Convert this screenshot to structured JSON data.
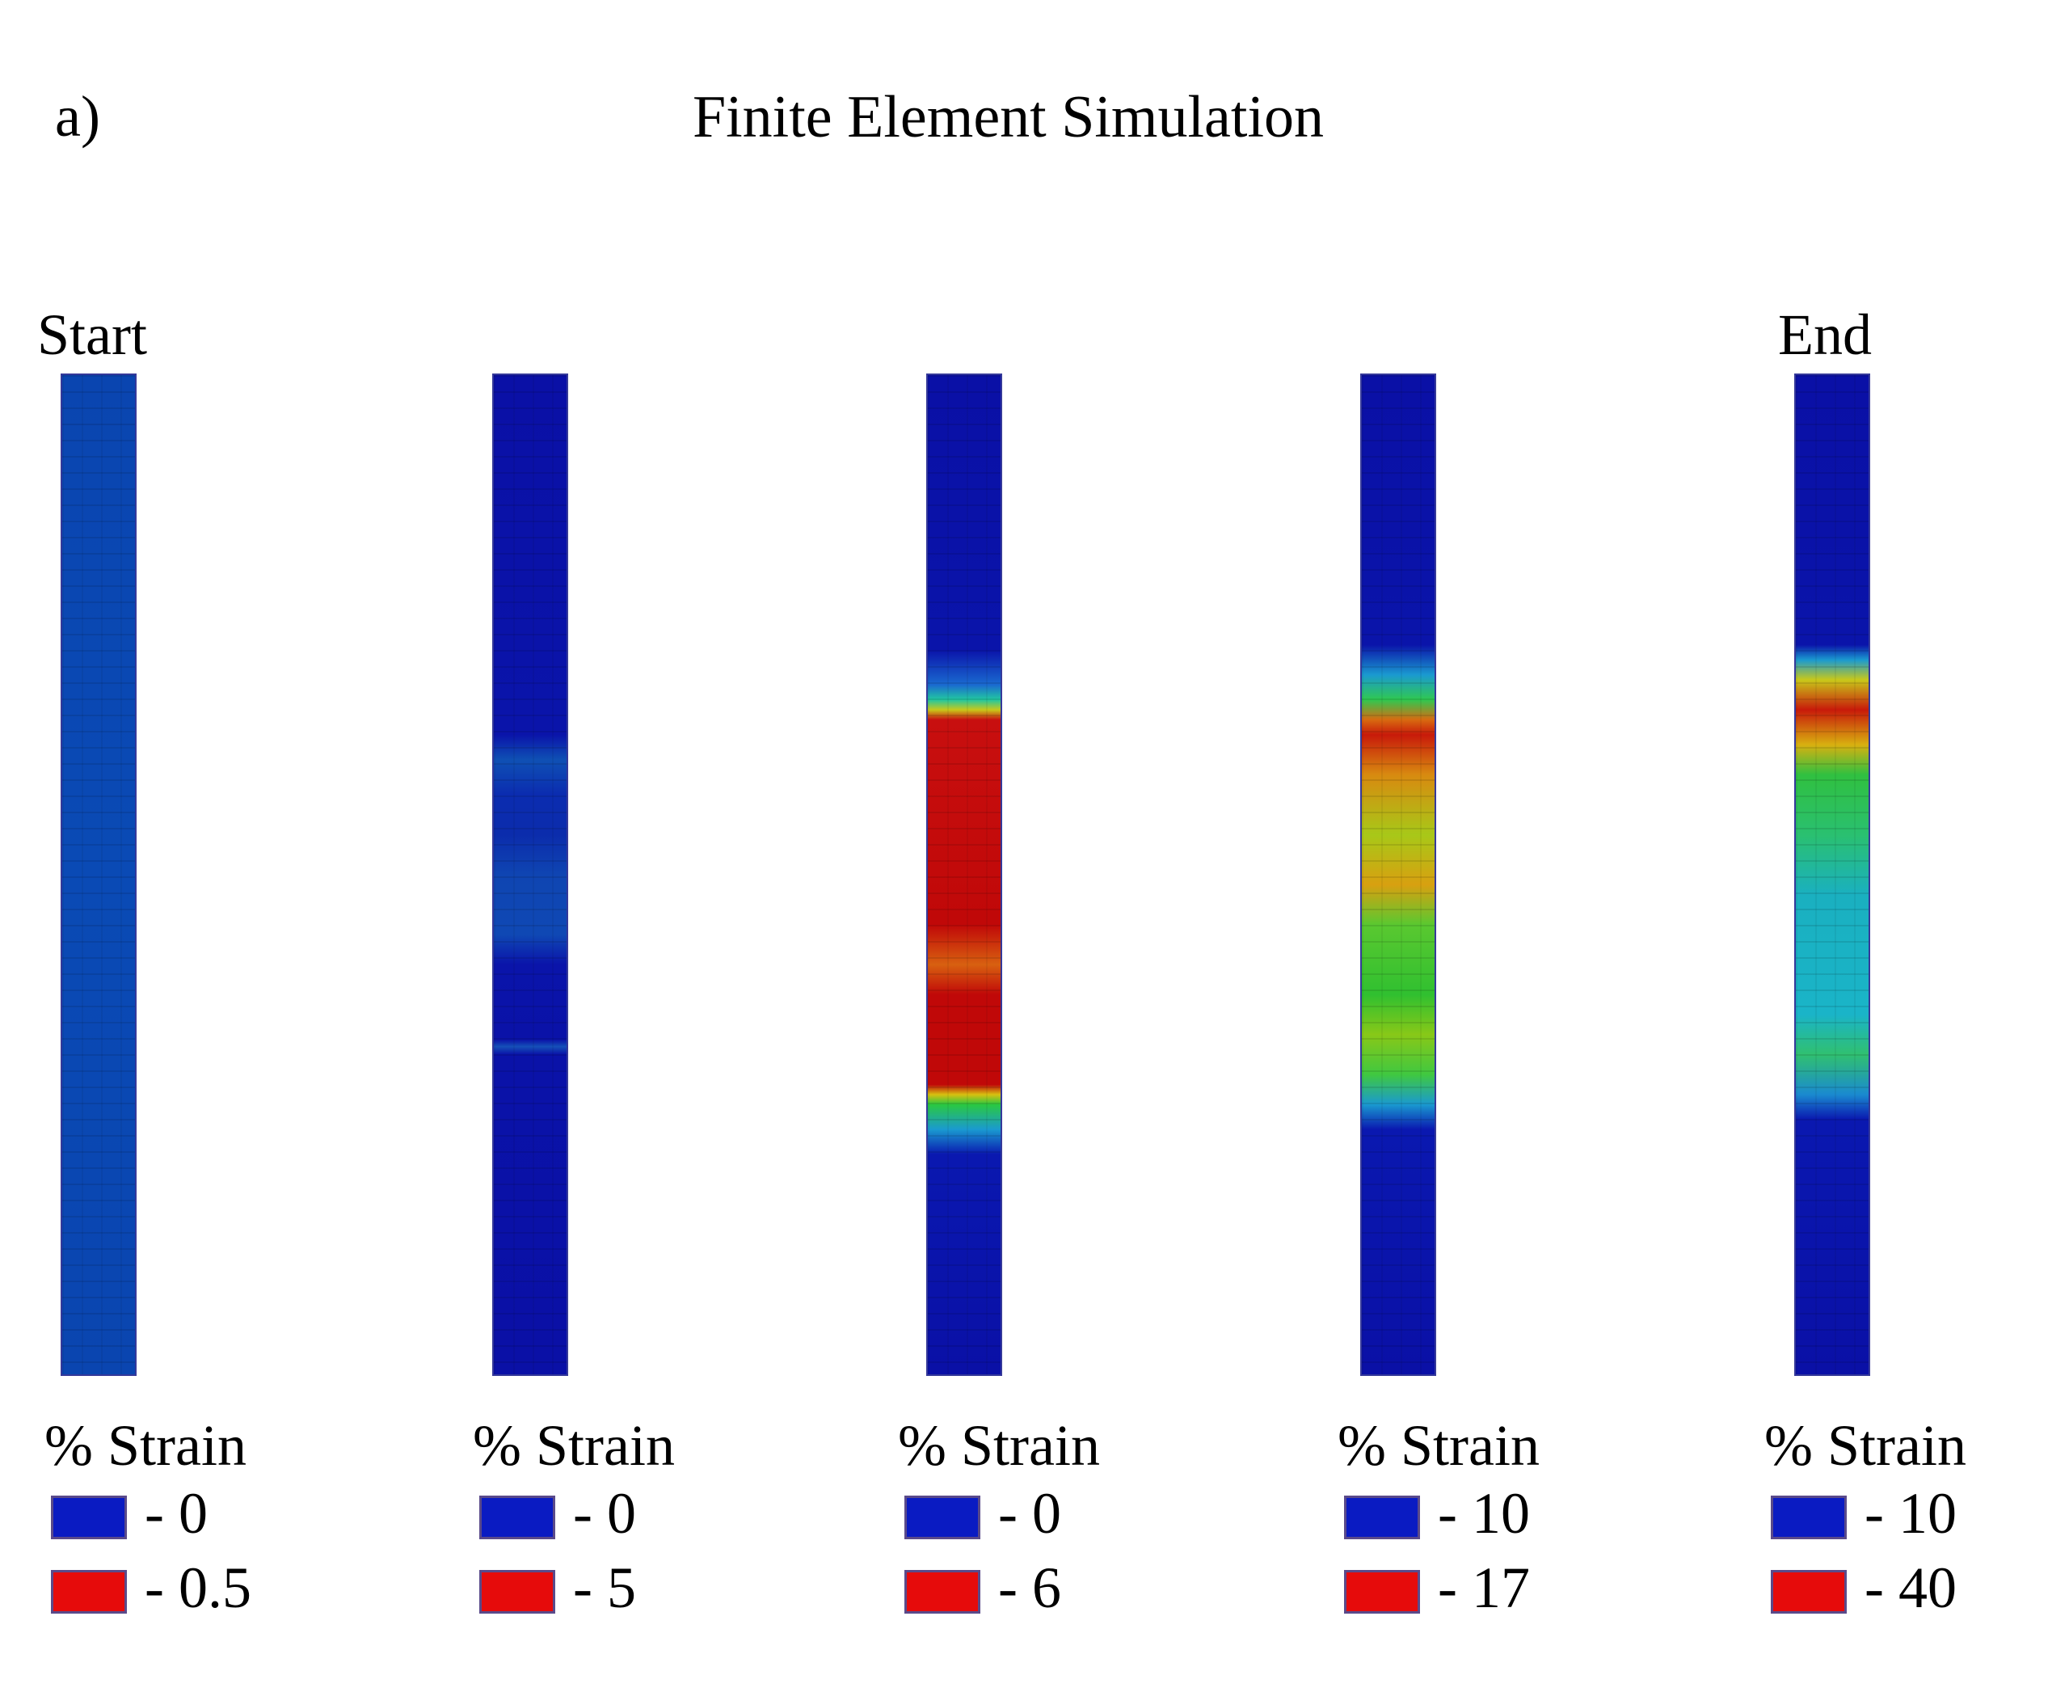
{
  "figure": {
    "panel_label": "a)",
    "title": "Finite Element Simulation",
    "start_label": "Start",
    "end_label": "End"
  },
  "colors": {
    "low": "#0a1bc2",
    "high": "#e60b0b"
  },
  "panels": [
    {
      "legend_title": "% Strain",
      "legend_low": "- 0",
      "legend_high": "- 0.5",
      "strain_profile": [
        [
          "#0a45b0",
          0
        ],
        [
          "#0a4ab5",
          0.5
        ],
        [
          "#0a45b0",
          1
        ]
      ]
    },
    {
      "legend_title": "% Strain",
      "legend_low": "- 0",
      "legend_high": "- 5",
      "strain_profile": [
        [
          "#0a10a6",
          0
        ],
        [
          "#0a14aa",
          0.36
        ],
        [
          "#0f50b4",
          0.385
        ],
        [
          "#0b2cb0",
          0.42
        ],
        [
          "#0b2cac",
          0.46
        ],
        [
          "#0f45b2",
          0.5
        ],
        [
          "#0f48b4",
          0.56
        ],
        [
          "#0a14aa",
          0.59
        ],
        [
          "#0a12a8",
          0.665
        ],
        [
          "#1550b8",
          0.672
        ],
        [
          "#0a12a8",
          0.68
        ],
        [
          "#0a10a6",
          1
        ]
      ]
    },
    {
      "legend_title": "% Strain",
      "legend_low": "- 0",
      "legend_high": "- 6",
      "strain_profile": [
        [
          "#0a10a6",
          0
        ],
        [
          "#0a14aa",
          0.275
        ],
        [
          "#1a6ad0",
          0.31
        ],
        [
          "#22c8a0",
          0.325
        ],
        [
          "#c8c81a",
          0.335
        ],
        [
          "#c80f0f",
          0.345
        ],
        [
          "#c00808",
          0.55
        ],
        [
          "#d86010",
          0.59
        ],
        [
          "#c00808",
          0.62
        ],
        [
          "#c00808",
          0.71
        ],
        [
          "#d8c010",
          0.72
        ],
        [
          "#2ac840",
          0.73
        ],
        [
          "#1a9ad0",
          0.755
        ],
        [
          "#0a18b0",
          0.78
        ],
        [
          "#0a10a6",
          1
        ]
      ]
    },
    {
      "legend_title": "% Strain",
      "legend_low": "- 10",
      "legend_high": "- 17",
      "strain_profile": [
        [
          "#0a10a6",
          0
        ],
        [
          "#0a14aa",
          0.27
        ],
        [
          "#1a9ad0",
          0.3
        ],
        [
          "#30c850",
          0.325
        ],
        [
          "#d86a10",
          0.345
        ],
        [
          "#c81a0a",
          0.36
        ],
        [
          "#d88a10",
          0.4
        ],
        [
          "#a8c818",
          0.46
        ],
        [
          "#d8a010",
          0.51
        ],
        [
          "#5ac830",
          0.55
        ],
        [
          "#30c030",
          0.62
        ],
        [
          "#88c818",
          0.66
        ],
        [
          "#40c840",
          0.7
        ],
        [
          "#1a9ad0",
          0.73
        ],
        [
          "#0a18b0",
          0.755
        ],
        [
          "#0a10a6",
          1
        ]
      ]
    },
    {
      "legend_title": "% Strain",
      "legend_low": "- 10",
      "legend_high": "- 40",
      "strain_profile": [
        [
          "#0a10a6",
          0
        ],
        [
          "#0a14aa",
          0.27
        ],
        [
          "#1a9ad0",
          0.285
        ],
        [
          "#c8c81a",
          0.305
        ],
        [
          "#c81a0a",
          0.335
        ],
        [
          "#d8b010",
          0.37
        ],
        [
          "#30c040",
          0.4
        ],
        [
          "#2ac070",
          0.46
        ],
        [
          "#1ab0c0",
          0.52
        ],
        [
          "#1ab4c8",
          0.64
        ],
        [
          "#30c070",
          0.68
        ],
        [
          "#1a8ad0",
          0.72
        ],
        [
          "#0a18b0",
          0.745
        ],
        [
          "#0a10a6",
          1
        ]
      ]
    }
  ]
}
